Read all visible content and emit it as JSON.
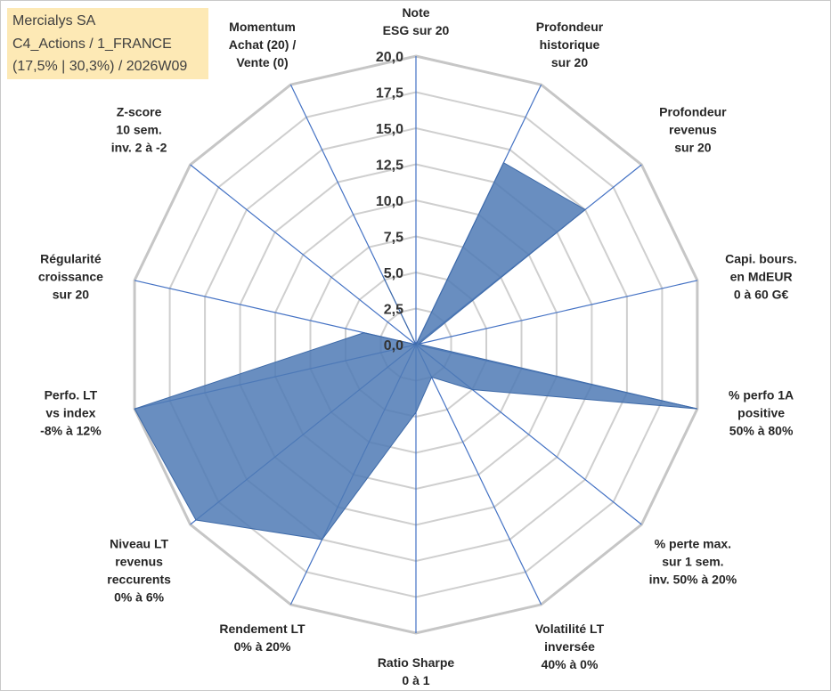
{
  "info_box": {
    "line1": "Mercialys SA",
    "line2": "C4_Actions / 1_FRANCE",
    "line3": "(17,5% | 30,3%) / 2026W09"
  },
  "chart_data": {
    "type": "radar",
    "title": "",
    "range": [
      0,
      20
    ],
    "tick_values": [
      0,
      2.5,
      5,
      7.5,
      10,
      12.5,
      15,
      17.5,
      20
    ],
    "tick_labels": [
      "0,0",
      "2,5",
      "5,0",
      "7,5",
      "10,0",
      "12,5",
      "15,0",
      "17,5",
      "20,0"
    ],
    "axes": [
      {
        "label": [
          "Note",
          "ESG sur 20"
        ],
        "value": 0
      },
      {
        "label": [
          "Profondeur",
          "historique",
          "sur 20"
        ],
        "value": 14
      },
      {
        "label": [
          "Profondeur",
          "revenus",
          "sur 20"
        ],
        "value": 15
      },
      {
        "label": [
          "Capi. bours.",
          "en MdEUR",
          "0 à 60 G€"
        ],
        "value": 0.2
      },
      {
        "label": [
          "% perfo 1A",
          "positive",
          "50% à 80%"
        ],
        "value": 20
      },
      {
        "label": [
          "% perte max.",
          "sur 1 sem.",
          "inv. 50% à 20%"
        ],
        "value": 5
      },
      {
        "label": [
          "Volatilité LT",
          "inversée",
          "40% à 0%"
        ],
        "value": 2.5
      },
      {
        "label": [
          "Ratio Sharpe",
          "0 à 1"
        ],
        "value": 4.7
      },
      {
        "label": [
          "Rendement LT",
          "0% à 20%"
        ],
        "value": 15
      },
      {
        "label": [
          "Niveau LT",
          "revenus",
          "reccurents",
          "0% à 6%"
        ],
        "value": 19.5
      },
      {
        "label": [
          "Perfo. LT",
          "vs index",
          "-8% à 12%"
        ],
        "value": 20
      },
      {
        "label": [
          "Régularité",
          "croissance",
          "sur 20"
        ],
        "value": 3.7
      },
      {
        "label": [
          "Z-score",
          "10 sem.",
          "inv. 2 à -2"
        ],
        "value": 0
      },
      {
        "label": [
          "Momentum",
          "Achat (20) /",
          "Vente (0)"
        ],
        "value": 5.3
      }
    ],
    "series": [
      {
        "name": "Mercialys SA",
        "color": "#4f7ab5"
      }
    ]
  }
}
